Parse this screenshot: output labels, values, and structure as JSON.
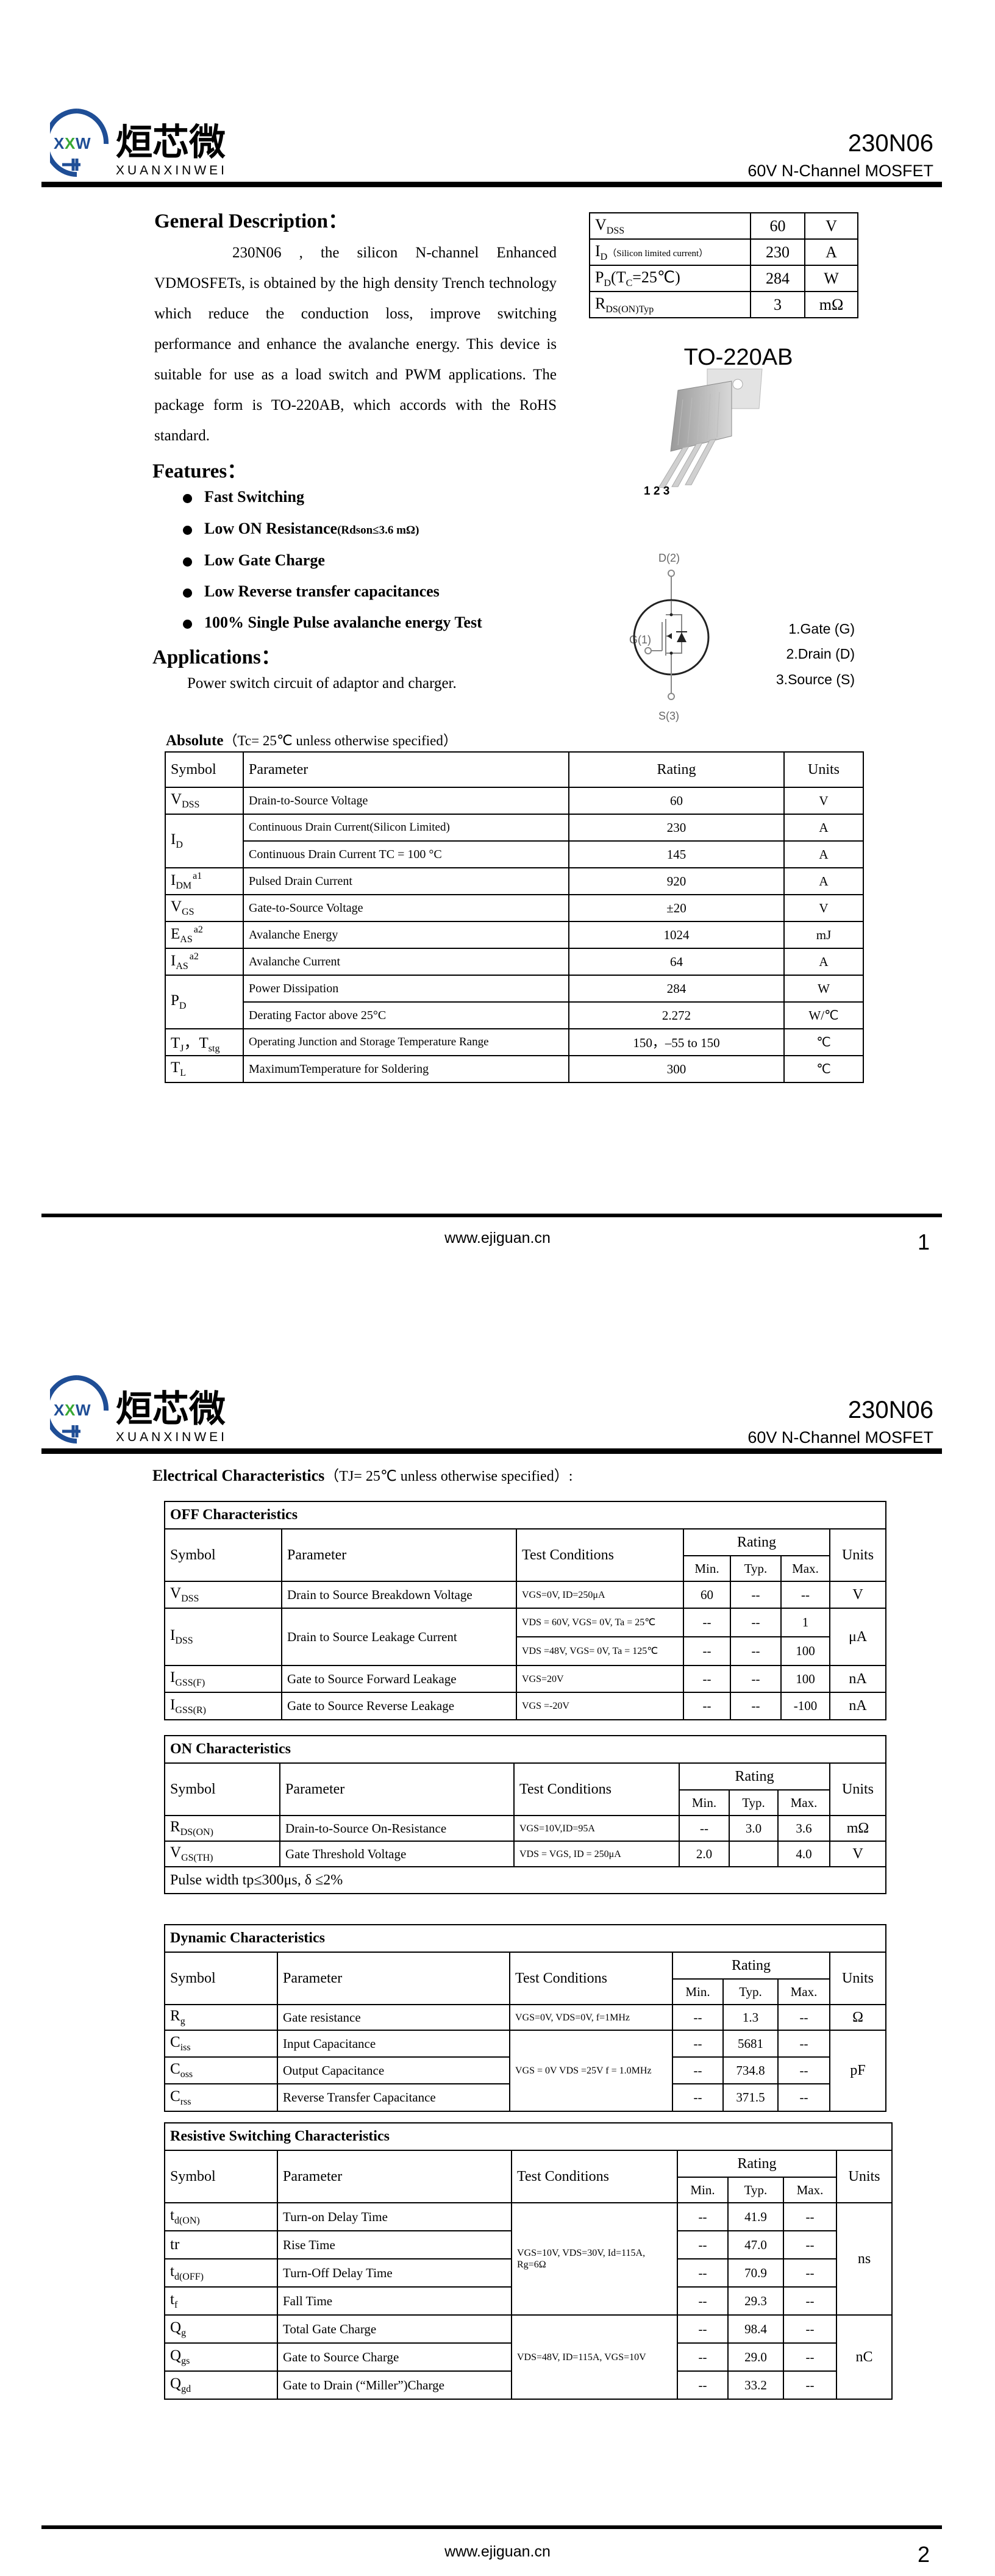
{
  "header": {
    "logo_cn": "烜芯微",
    "logo_en": "XUANXINWEI",
    "logo_mark": "XXW",
    "part_number": "230N06",
    "part_description": "60V N-Channel MOSFET",
    "colors": {
      "logo_blue": "#1f4e96",
      "logo_green": "#3aa935"
    }
  },
  "footer": {
    "url": "www.ejiguan.cn",
    "pages": [
      "1",
      "2"
    ]
  },
  "general": {
    "heading": "General Description：",
    "text": "230N06 , the silicon N-channel Enhanced VDMOSFETs, is obtained by the high density Trench technology which reduce the conduction loss, improve switching performance and enhance the avalanche energy. This device is suitable for use as a load switch and PWM applications. The package form is TO-220AB, which accords with the RoHS standard."
  },
  "key_specs": [
    {
      "sym": {
        "main": "V",
        "sub": "DSS"
      },
      "value": "60",
      "unit": "V"
    },
    {
      "sym": {
        "main": "I",
        "sub": "D",
        "note": "（Silicon limited current）"
      },
      "value": "230",
      "unit": "A"
    },
    {
      "sym": {
        "main": "P",
        "sub": "D",
        "note2": "(T",
        "sub2": "C",
        "tail": "=25℃)"
      },
      "value": "284",
      "unit": "W"
    },
    {
      "sym": {
        "main": "R",
        "sub": "DS(ON)Typ"
      },
      "value": "3",
      "unit": "mΩ"
    }
  ],
  "package": {
    "name": "TO-220AB",
    "pins": "1 2 3"
  },
  "features": {
    "heading": "Features：",
    "items": [
      {
        "label": "Fast Switching"
      },
      {
        "label": "Low ON Resistance",
        "note": "(Rdson≤3.6 mΩ)"
      },
      {
        "label": "Low Gate Charge"
      },
      {
        "label": "Low Reverse transfer capacitances"
      },
      {
        "label": "100% Single Pulse avalanche energy Test"
      }
    ]
  },
  "applications": {
    "heading": "Applications：",
    "text": "Power switch circuit of adaptor and charger."
  },
  "schematic": {
    "drain": "D(2)",
    "gate": "G(1)",
    "source": "S(3)"
  },
  "pinout": [
    "1.Gate (G)",
    "2.Drain (D)",
    "3.Source (S)"
  ],
  "absolute": {
    "heading": "Absolute",
    "condition": "（Tc= 25℃  unless otherwise specified）",
    "columns": [
      "Symbol",
      "Parameter",
      "Rating",
      "Units"
    ],
    "rows": [
      {
        "sym": {
          "main": "V",
          "sub": "DSS"
        },
        "param": "Drain-to-Source Voltage",
        "rating": "60",
        "unit": "V"
      },
      {
        "sym": {
          "main": "I",
          "sub": "D"
        },
        "param": "Continuous Drain Current(Silicon Limited)",
        "rating": "230",
        "unit": "A"
      },
      {
        "sym": null,
        "param": "Continuous Drain Current TC = 100 °C",
        "rating": "145",
        "unit": "A"
      },
      {
        "sym": {
          "main": "I",
          "sub": "DM",
          "sup": "a1"
        },
        "param": "Pulsed Drain Current",
        "rating": "920",
        "unit": "A"
      },
      {
        "sym": {
          "main": "V",
          "sub": "GS"
        },
        "param": "Gate-to-Source Voltage",
        "rating": "±20",
        "unit": "V"
      },
      {
        "sym": {
          "main": "E",
          "sub": "AS",
          "sup": "a2"
        },
        "param": "Avalanche Energy",
        "rating": "1024",
        "unit": "mJ"
      },
      {
        "sym": {
          "main": "I",
          "sub": "AS",
          "sup": "a2"
        },
        "param": "Avalanche Current",
        "rating": "64",
        "unit": "A"
      },
      {
        "sym": {
          "main": "P",
          "sub": "D"
        },
        "param": "Power Dissipation",
        "rating": "284",
        "unit": "W"
      },
      {
        "sym": null,
        "param": "Derating Factor above 25°C",
        "rating": "2.272",
        "unit": "W/℃"
      },
      {
        "sym": {
          "main": "T",
          "sub": "J",
          "mid": "，T",
          "sub2": "stg"
        },
        "param": "Operating Junction and Storage Temperature Range",
        "rating": "150，–55 to 150",
        "unit": "℃"
      },
      {
        "sym": {
          "main": "T",
          "sub": "L"
        },
        "param": "MaximumTemperature for Soldering",
        "rating": "300",
        "unit": "℃"
      }
    ]
  },
  "electrical": {
    "heading": "Electrical Characteristics",
    "condition": "（TJ= 25℃ unless otherwise specified）:",
    "columns": {
      "symbol": "Symbol",
      "parameter": "Parameter",
      "conditions": "Test Conditions",
      "rating": "Rating",
      "min": "Min.",
      "typ": "Typ.",
      "max": "Max.",
      "units": "Units"
    },
    "tables": [
      {
        "title": "OFF Characteristics",
        "rows": [
          {
            "sym": {
              "main": "V",
              "sub": "DSS"
            },
            "param": "Drain to Source Breakdown Voltage",
            "cond": "VGS=0V, ID=250μA",
            "min": "60",
            "typ": "--",
            "max": "--",
            "unit": "V"
          },
          {
            "sym": {
              "main": "I",
              "sub": "DSS"
            },
            "param": "Drain to Source Leakage Current",
            "cond": "VDS = 60V, VGS= 0V, Ta = 25℃",
            "min": "--",
            "typ": "--",
            "max": "1",
            "unit": "μA"
          },
          {
            "sym": null,
            "param": null,
            "cond": "VDS =48V, VGS= 0V, Ta = 125℃",
            "min": "--",
            "typ": "--",
            "max": "100",
            "unit": null
          },
          {
            "sym": {
              "main": "I",
              "sub": "GSS(F)"
            },
            "param": "Gate to Source Forward Leakage",
            "cond": "VGS=20V",
            "min": "--",
            "typ": "--",
            "max": "100",
            "unit": "nA"
          },
          {
            "sym": {
              "main": "I",
              "sub": "GSS(R)"
            },
            "param": "Gate to Source Reverse Leakage",
            "cond": "VGS =-20V",
            "min": "--",
            "typ": "--",
            "max": "-100",
            "unit": "nA"
          }
        ]
      },
      {
        "title": "ON Characteristics",
        "rows": [
          {
            "sym": {
              "main": "R",
              "sub": "DS(ON)"
            },
            "param": "Drain-to-Source On-Resistance",
            "cond": "VGS=10V,ID=95A",
            "min": "--",
            "typ": "3.0",
            "max": "3.6",
            "unit": "mΩ"
          },
          {
            "sym": {
              "main": "V",
              "sub": "GS(TH)"
            },
            "param": "Gate Threshold Voltage",
            "cond": "VDS = VGS, ID = 250μA",
            "min": "2.0",
            "typ": "",
            "max": "4.0",
            "unit": "V"
          }
        ],
        "note": "Pulse width tp≤300μs, δ ≤2%"
      },
      {
        "title": "Dynamic Characteristics",
        "rows": [
          {
            "sym": {
              "main": "R",
              "sub": "g"
            },
            "param": "Gate resistance",
            "cond": "VGS=0V, VDS=0V, f=1MHz",
            "min": "--",
            "typ": "1.3",
            "max": "--",
            "unit": "Ω"
          },
          {
            "sym": {
              "main": "C",
              "sub": "iss"
            },
            "param": "Input Capacitance",
            "cond": "VGS = 0V VDS =25V f = 1.0MHz",
            "min": "--",
            "typ": "5681",
            "max": "--",
            "unit": "pF"
          },
          {
            "sym": {
              "main": "C",
              "sub": "oss"
            },
            "param": "Output Capacitance",
            "cond": null,
            "min": "--",
            "typ": "734.8",
            "max": "--",
            "unit": null
          },
          {
            "sym": {
              "main": "C",
              "sub": "rss"
            },
            "param": "Reverse Transfer Capacitance",
            "cond": null,
            "min": "--",
            "typ": "371.5",
            "max": "--",
            "unit": null
          }
        ]
      },
      {
        "title": "Resistive Switching Characteristics",
        "rows": [
          {
            "sym": {
              "main": "t",
              "sub": "d(ON)"
            },
            "param": "Turn-on Delay Time",
            "cond": "VGS=10V,    VDS=30V, Id=115A,     Rg=6Ω",
            "min": "--",
            "typ": "41.9",
            "max": "--",
            "unit": "ns"
          },
          {
            "sym": {
              "main": "tr"
            },
            "param": "Rise Time",
            "cond": null,
            "min": "--",
            "typ": "47.0",
            "max": "--",
            "unit": null
          },
          {
            "sym": {
              "main": "t",
              "sub": "d(OFF)"
            },
            "param": "Turn-Off Delay Time",
            "cond": null,
            "min": "--",
            "typ": "70.9",
            "max": "--",
            "unit": null
          },
          {
            "sym": {
              "main": "t",
              "sub": "f"
            },
            "param": "Fall Time",
            "cond": null,
            "min": "--",
            "typ": "29.3",
            "max": "--",
            "unit": null
          },
          {
            "sym": {
              "main": "Q",
              "sub": "g"
            },
            "param": "Total Gate Charge",
            "cond": "VDS=48V,    ID=115A, VGS=10V",
            "min": "--",
            "typ": "98.4",
            "max": "--",
            "unit": "nC"
          },
          {
            "sym": {
              "main": "Q",
              "sub": "gs"
            },
            "param": "Gate to Source Charge",
            "cond": null,
            "min": "--",
            "typ": "29.0",
            "max": "--",
            "unit": null
          },
          {
            "sym": {
              "main": "Q",
              "sub": "gd"
            },
            "param": "Gate to Drain (“Miller”)Charge",
            "cond": null,
            "min": "--",
            "typ": "33.2",
            "max": "--",
            "unit": null
          }
        ]
      }
    ]
  }
}
